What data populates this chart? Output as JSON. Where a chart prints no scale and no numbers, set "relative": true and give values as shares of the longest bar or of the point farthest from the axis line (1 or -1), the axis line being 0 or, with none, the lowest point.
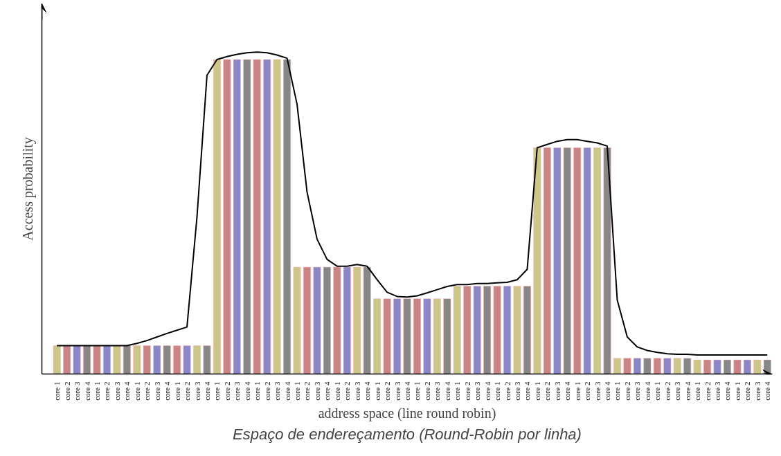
{
  "chart_data": {
    "type": "bar",
    "relative": true,
    "xlabel": "address space (line round robin)",
    "ylabel": "Access probability",
    "tick_labels": "x",
    "annotations": [
      "Espaço de endereçamento (Round-Robin por linha)"
    ],
    "categories": [
      "core 1",
      "core 2",
      "core 3",
      "core 4",
      "core 1",
      "core 2",
      "core 3",
      "core 4",
      "core 1",
      "core 2",
      "core 3",
      "core 4",
      "core 1",
      "core 2",
      "core 3",
      "core 4",
      "core 1",
      "core 2",
      "core 3",
      "core 4",
      "core 1",
      "core 2",
      "core 3",
      "core 4",
      "core 1",
      "core 2",
      "core 3",
      "core 4",
      "core 1",
      "core 2",
      "core 3",
      "core 4",
      "core 1",
      "core 2",
      "core 3",
      "core 4",
      "core 1",
      "core 2",
      "core 3",
      "core 4",
      "core 1",
      "core 2",
      "core 3",
      "core 4",
      "core 1",
      "core 2",
      "core 3",
      "core 4",
      "core 1",
      "core 2",
      "core 3",
      "core 4",
      "core 1",
      "core 2",
      "core 3",
      "core 4",
      "core 1",
      "core 2",
      "core 3",
      "core 4",
      "core 1",
      "core 2",
      "core 3",
      "core 4",
      "core 1",
      "core 2",
      "core 3",
      "core 4",
      "core 1",
      "core 2",
      "core 3",
      "core 4"
    ],
    "series": [
      {
        "colors": [
          "#cbc689",
          "#c98585",
          "#8a87c9",
          "#878787",
          "#c98585",
          "#8a87c9",
          "#cbc689",
          "#878787",
          "#cbc689",
          "#c98585",
          "#8a87c9",
          "#878787",
          "#c98585",
          "#8a87c9",
          "#cbc689",
          "#878787",
          "#cbc689",
          "#c98585",
          "#8a87c9",
          "#878787",
          "#c98585",
          "#8a87c9",
          "#cbc689",
          "#878787",
          "#cbc689",
          "#c98585",
          "#8a87c9",
          "#878787",
          "#c98585",
          "#8a87c9",
          "#cbc689",
          "#878787",
          "#cbc689",
          "#c98585",
          "#8a87c9",
          "#878787",
          "#c98585",
          "#8a87c9",
          "#cbc689",
          "#878787",
          "#cbc689",
          "#c98585",
          "#8a87c9",
          "#878787",
          "#c98585",
          "#8a87c9",
          "#cbc689",
          "#878787",
          "#cbc689",
          "#c98585",
          "#8a87c9",
          "#878787",
          "#c98585",
          "#8a87c9",
          "#cbc689",
          "#878787",
          "#cbc689",
          "#c98585",
          "#8a87c9",
          "#878787",
          "#c98585",
          "#8a87c9",
          "#cbc689",
          "#878787",
          "#cbc689",
          "#c98585",
          "#8a87c9",
          "#878787",
          "#c98585",
          "#8a87c9",
          "#cbc689",
          "#878787"
        ],
        "values": [
          0.088,
          0.088,
          0.088,
          0.088,
          0.088,
          0.088,
          0.088,
          0.088,
          0.088,
          0.088,
          0.088,
          0.088,
          0.088,
          0.088,
          0.088,
          0.088,
          0.977,
          0.977,
          0.977,
          0.977,
          0.977,
          0.977,
          0.977,
          0.977,
          0.332,
          0.332,
          0.332,
          0.332,
          0.332,
          0.332,
          0.332,
          0.332,
          0.234,
          0.234,
          0.234,
          0.234,
          0.234,
          0.234,
          0.234,
          0.234,
          0.273,
          0.273,
          0.273,
          0.273,
          0.273,
          0.273,
          0.273,
          0.273,
          0.703,
          0.703,
          0.703,
          0.703,
          0.703,
          0.703,
          0.703,
          0.703,
          0.049,
          0.049,
          0.049,
          0.049,
          0.049,
          0.049,
          0.049,
          0.049,
          0.044,
          0.044,
          0.044,
          0.044,
          0.044,
          0.044,
          0.044,
          0.044
        ]
      },
      {
        "type": "line",
        "color": "#000000",
        "marker": "none",
        "values": [
          0.088,
          0.088,
          0.088,
          0.088,
          0.088,
          0.088,
          0.088,
          0.088,
          0.095,
          0.104,
          0.115,
          0.126,
          0.136,
          0.146,
          0.488,
          0.928,
          0.977,
          0.986,
          0.993,
          0.998,
          1,
          0.998,
          0.991,
          0.981,
          0.838,
          0.565,
          0.419,
          0.356,
          0.335,
          0.335,
          0.34,
          0.335,
          0.293,
          0.254,
          0.241,
          0.239,
          0.243,
          0.252,
          0.262,
          0.272,
          0.278,
          0.278,
          0.281,
          0.281,
          0.283,
          0.285,
          0.293,
          0.325,
          0.703,
          0.713,
          0.723,
          0.728,
          0.728,
          0.723,
          0.718,
          0.708,
          0.23,
          0.115,
          0.084,
          0.073,
          0.067,
          0.063,
          0.061,
          0.061,
          0.059,
          0.059,
          0.059,
          0.059,
          0.059,
          0.059,
          0.059,
          0.059
        ]
      }
    ]
  }
}
